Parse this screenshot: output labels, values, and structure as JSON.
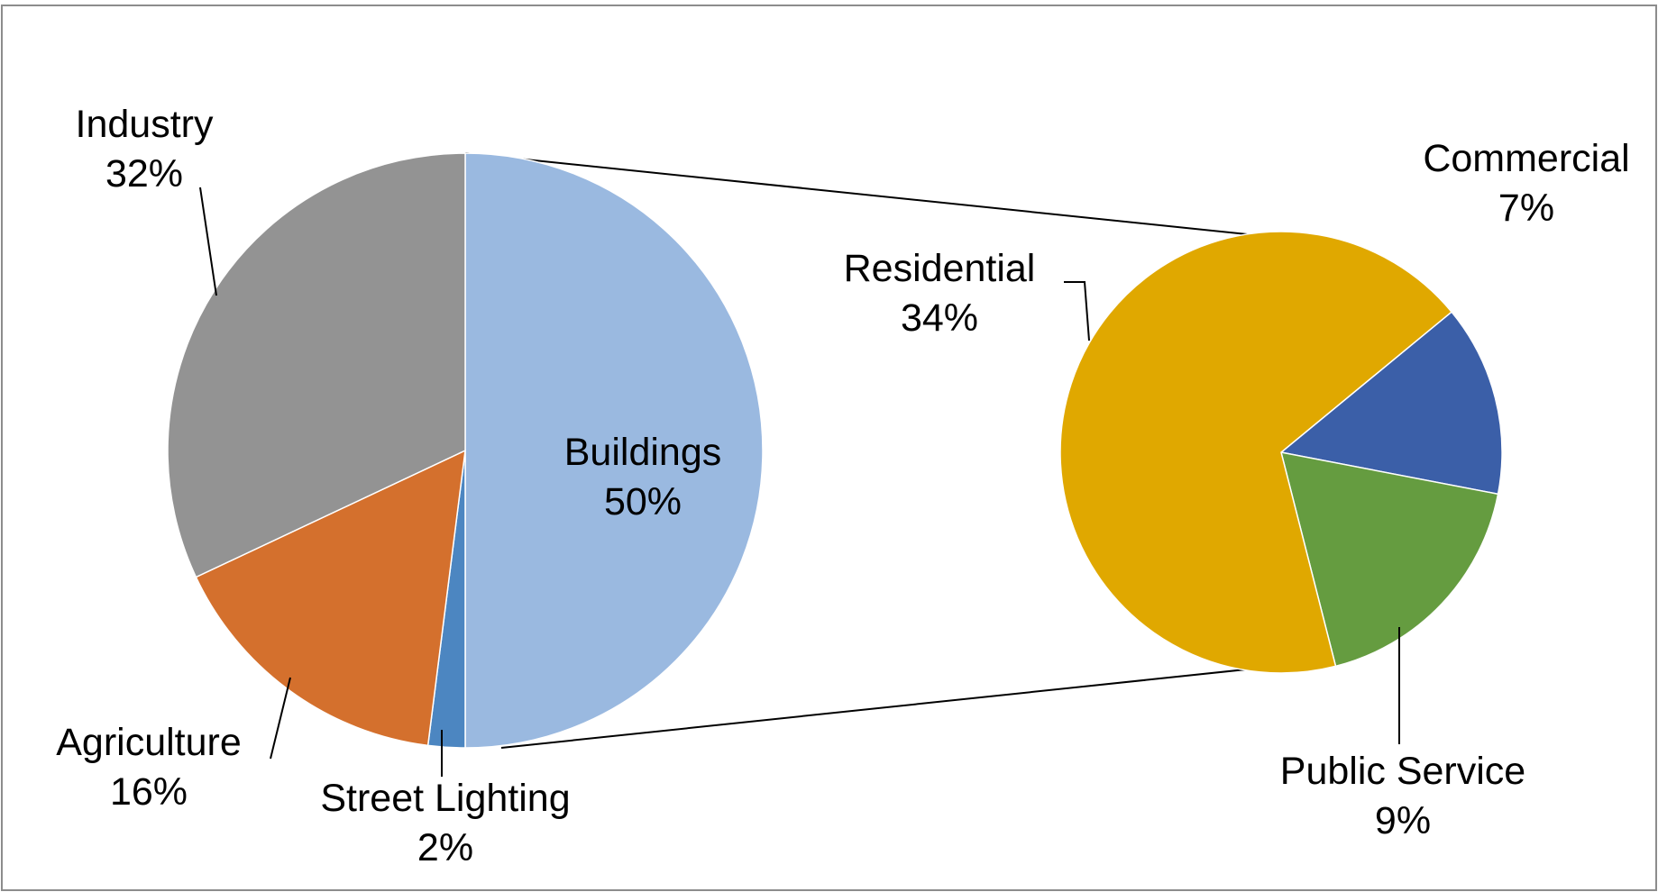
{
  "chart_data": {
    "type": "bar-of-pie",
    "main_pie": {
      "slices": [
        {
          "label": "Buildings",
          "value": 50,
          "value_label": "50%",
          "color": "#9ab9e0"
        },
        {
          "label": "Street Lighting",
          "value": 2,
          "value_label": "2%",
          "color": "#4c86c1"
        },
        {
          "label": "Agriculture",
          "value": 16,
          "value_label": "16%",
          "color": "#d4702d"
        },
        {
          "label": "Industry",
          "value": 32,
          "value_label": "32%",
          "color": "#939393"
        }
      ]
    },
    "breakout_pie": {
      "source_slice": "Buildings",
      "slices": [
        {
          "label": "Residential",
          "value": 34,
          "value_label": "34%",
          "color": "#e0a800"
        },
        {
          "label": "Commercial",
          "value": 7,
          "value_label": "7%",
          "color": "#3b5fa8"
        },
        {
          "label": "Public Service",
          "value": 9,
          "value_label": "9%",
          "color": "#659c40"
        }
      ]
    },
    "title": "",
    "legend": "none"
  }
}
